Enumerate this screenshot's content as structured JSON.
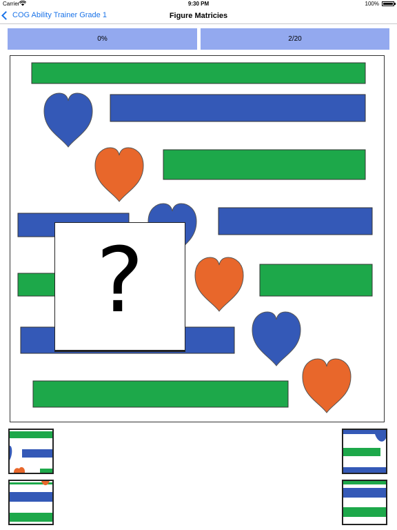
{
  "status_bar": {
    "carrier": "Carrier",
    "time": "9:30 PM",
    "battery": "100%"
  },
  "nav": {
    "back_label": "COG Ability Trainer Grade 1",
    "title": "Figure Matricies"
  },
  "progress": {
    "percent_label": "0%",
    "question_counter": "2/20"
  },
  "colors": {
    "green": "#1da84a",
    "blue": "#3459b7",
    "orange": "#e8672b",
    "progress_bg": "#93a9ef",
    "link": "#1a73e8"
  },
  "question_prompt": "?",
  "answer_options": [
    "option-1",
    "option-2",
    "option-3",
    "option-4"
  ]
}
